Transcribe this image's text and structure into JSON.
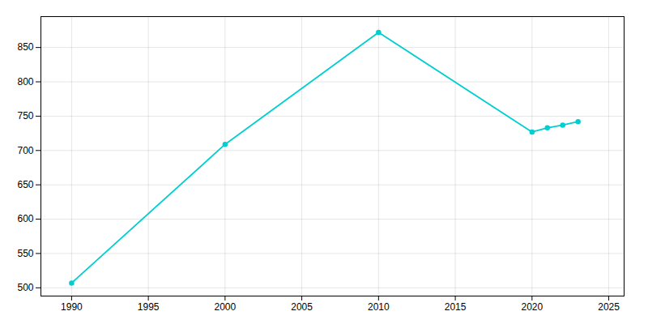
{
  "chart_data": {
    "type": "line",
    "x": [
      1990,
      2000,
      2010,
      2020,
      2021,
      2022,
      2023
    ],
    "values": [
      507,
      709,
      872,
      727,
      733,
      737,
      742
    ],
    "color": "#00CED1",
    "marker": "circle",
    "xlim": [
      1988,
      2026
    ],
    "ylim": [
      488,
      895
    ],
    "xticks": [
      1990,
      1995,
      2000,
      2005,
      2010,
      2015,
      2020,
      2025
    ],
    "yticks": [
      500,
      550,
      600,
      650,
      700,
      750,
      800,
      850
    ],
    "grid": true
  }
}
